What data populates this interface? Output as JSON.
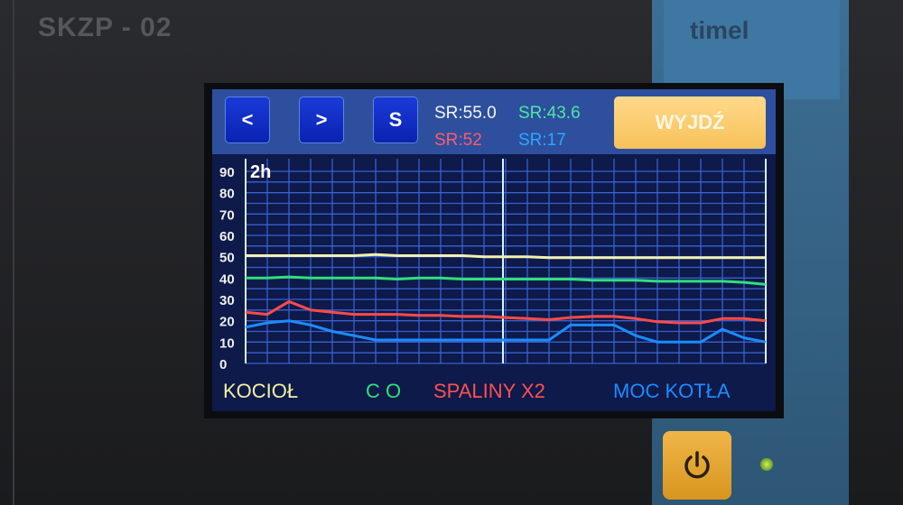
{
  "device": {
    "model": "SKZP - 02",
    "brand": "timel"
  },
  "toolbar": {
    "prev_label": "<",
    "next_label": ">",
    "s_label": "S",
    "sr_kociol": "SR:55.0",
    "sr_co": "SR:43.6",
    "sr_spaliny": "SR:52",
    "sr_moc": "SR:17",
    "exit_label": "WYJDŹ"
  },
  "colors": {
    "kociol": "#f4f0b0",
    "co": "#2fe07a",
    "spaliny": "#ff4a4a",
    "moc": "#1a8cff",
    "grid": "#3a5fd0",
    "cursor": "#d8f4ff"
  },
  "chart_data": {
    "type": "line",
    "period_label": "2h",
    "ylim": [
      0,
      90
    ],
    "yticks": [
      "0",
      "10",
      "20",
      "30",
      "40",
      "50",
      "60",
      "70",
      "80",
      "90"
    ],
    "grid": true,
    "legend_position": "bottom",
    "series": [
      {
        "name": "KOCIOŁ",
        "values": [
          50.5,
          50.5,
          50.5,
          50.5,
          50.5,
          50.5,
          51,
          50.5,
          50.5,
          50.5,
          50.5,
          50,
          50,
          50,
          49.5,
          49.5,
          49.5,
          49.5,
          49.5,
          49.5,
          49.5,
          49.5,
          49.5,
          49.5,
          49.5
        ]
      },
      {
        "name": "C O",
        "values": [
          40,
          40,
          40.5,
          40,
          40,
          40,
          40,
          39.5,
          40,
          40,
          39.5,
          39.5,
          39.5,
          39.5,
          39.5,
          39.5,
          39,
          39,
          39,
          38.5,
          38.5,
          38.5,
          38.5,
          38,
          37
        ]
      },
      {
        "name": "SPALINY X2",
        "values": [
          24,
          23,
          29,
          25,
          24,
          23,
          23,
          23,
          22.5,
          22.5,
          22,
          22,
          21.5,
          21,
          20.5,
          21.5,
          22,
          22,
          21,
          19.5,
          19,
          19,
          21,
          21,
          20
        ]
      },
      {
        "name": "MOC KOTŁA",
        "values": [
          17,
          19,
          20,
          18,
          15,
          13,
          11,
          11,
          11,
          11,
          11,
          11,
          11,
          11,
          11,
          18,
          18,
          18,
          13,
          10,
          10,
          10,
          16,
          12,
          10
        ]
      }
    ]
  }
}
